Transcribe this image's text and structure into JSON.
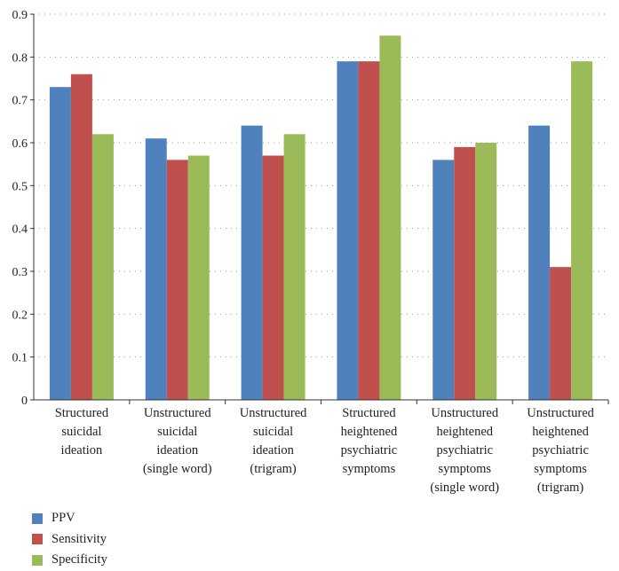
{
  "chart_data": {
    "type": "bar",
    "categories": [
      [
        "Structured",
        "suicidal",
        "ideation"
      ],
      [
        "Unstructured",
        "suicidal",
        "ideation",
        "(single word)"
      ],
      [
        "Unstructured",
        "suicidal",
        "ideation",
        "(trigram)"
      ],
      [
        "Structured",
        "heightened",
        "psychiatric",
        "symptoms"
      ],
      [
        "Unstructured",
        "heightened",
        "psychiatric",
        "symptoms",
        "(single word)"
      ],
      [
        "Unstructured",
        "heightened",
        "psychiatric",
        "symptoms",
        "(trigram)"
      ]
    ],
    "series": [
      {
        "name": "PPV",
        "color": "#4f81bd",
        "values": [
          0.73,
          0.61,
          0.64,
          0.79,
          0.56,
          0.64
        ]
      },
      {
        "name": "Sensitivity",
        "color": "#c0504d",
        "values": [
          0.76,
          0.56,
          0.57,
          0.79,
          0.59,
          0.31
        ]
      },
      {
        "name": "Specificity",
        "color": "#9bbb59",
        "values": [
          0.62,
          0.57,
          0.62,
          0.85,
          0.6,
          0.79
        ]
      }
    ],
    "yticks": [
      "0",
      "0.1",
      "0.2",
      "0.3",
      "0.4",
      "0.5",
      "0.6",
      "0.7",
      "0.8",
      "0.9"
    ],
    "ylim": [
      0,
      0.9
    ],
    "grid": true,
    "legend_position": "bottom-left"
  }
}
